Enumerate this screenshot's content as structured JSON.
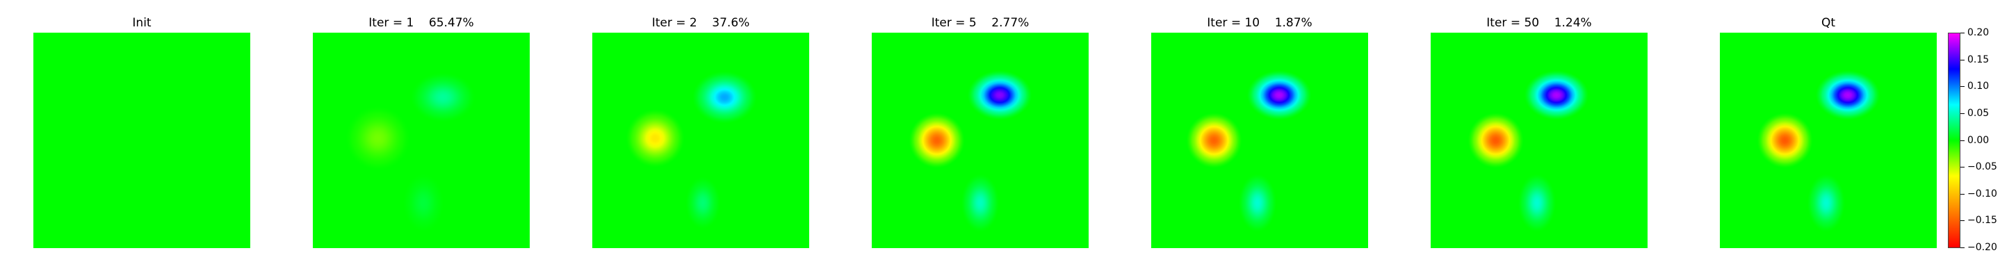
{
  "chart_data": {
    "type": "heatmap",
    "colormap": [
      "#ff0000",
      "#ff8000",
      "#ffff00",
      "#00ff00",
      "#00ffff",
      "#0000ff",
      "#ff00ff"
    ],
    "value_range": [
      -0.2,
      0.2
    ],
    "background_value": 0.0,
    "colorbar_ticks": [
      "0.20",
      "0.15",
      "0.10",
      "0.05",
      "0.00",
      "−0.05",
      "−0.10",
      "−0.15",
      "−0.20"
    ],
    "panels": [
      {
        "title": "Init",
        "blobs": []
      },
      {
        "title": "Iter = 1    65.47%",
        "blobs": [
          {
            "cx": 0.6,
            "cy": 0.3,
            "rx": 0.11,
            "ry": 0.085,
            "value": 0.04
          },
          {
            "cx": 0.3,
            "cy": 0.49,
            "rx": 0.11,
            "ry": 0.11,
            "value": -0.03
          },
          {
            "cx": 0.51,
            "cy": 0.79,
            "rx": 0.07,
            "ry": 0.1,
            "value": 0.015
          }
        ]
      },
      {
        "title": "Iter = 2    37.6%",
        "blobs": [
          {
            "cx": 0.61,
            "cy": 0.3,
            "rx": 0.11,
            "ry": 0.09,
            "value": 0.09
          },
          {
            "cx": 0.29,
            "cy": 0.49,
            "rx": 0.1,
            "ry": 0.1,
            "value": -0.08
          },
          {
            "cx": 0.51,
            "cy": 0.79,
            "rx": 0.06,
            "ry": 0.09,
            "value": 0.03
          }
        ]
      },
      {
        "title": "Iter = 5    2.77%",
        "blobs": [
          {
            "cx": 0.59,
            "cy": 0.29,
            "rx": 0.11,
            "ry": 0.085,
            "value": 0.17
          },
          {
            "cx": 0.3,
            "cy": 0.5,
            "rx": 0.095,
            "ry": 0.095,
            "value": -0.15
          },
          {
            "cx": 0.5,
            "cy": 0.79,
            "rx": 0.065,
            "ry": 0.1,
            "value": 0.05
          }
        ]
      },
      {
        "title": "Iter = 10    1.87%",
        "blobs": [
          {
            "cx": 0.59,
            "cy": 0.29,
            "rx": 0.11,
            "ry": 0.085,
            "value": 0.18
          },
          {
            "cx": 0.29,
            "cy": 0.5,
            "rx": 0.095,
            "ry": 0.095,
            "value": -0.15
          },
          {
            "cx": 0.49,
            "cy": 0.79,
            "rx": 0.065,
            "ry": 0.1,
            "value": 0.055
          }
        ]
      },
      {
        "title": "Iter = 50    1.24%",
        "blobs": [
          {
            "cx": 0.58,
            "cy": 0.29,
            "rx": 0.11,
            "ry": 0.085,
            "value": 0.18
          },
          {
            "cx": 0.3,
            "cy": 0.5,
            "rx": 0.095,
            "ry": 0.095,
            "value": -0.155
          },
          {
            "cx": 0.49,
            "cy": 0.79,
            "rx": 0.065,
            "ry": 0.1,
            "value": 0.055
          }
        ]
      },
      {
        "title": "Qt",
        "blobs": [
          {
            "cx": 0.59,
            "cy": 0.29,
            "rx": 0.11,
            "ry": 0.085,
            "value": 0.18
          },
          {
            "cx": 0.3,
            "cy": 0.5,
            "rx": 0.095,
            "ry": 0.095,
            "value": -0.155
          },
          {
            "cx": 0.49,
            "cy": 0.79,
            "rx": 0.065,
            "ry": 0.1,
            "value": 0.055
          }
        ]
      }
    ]
  }
}
